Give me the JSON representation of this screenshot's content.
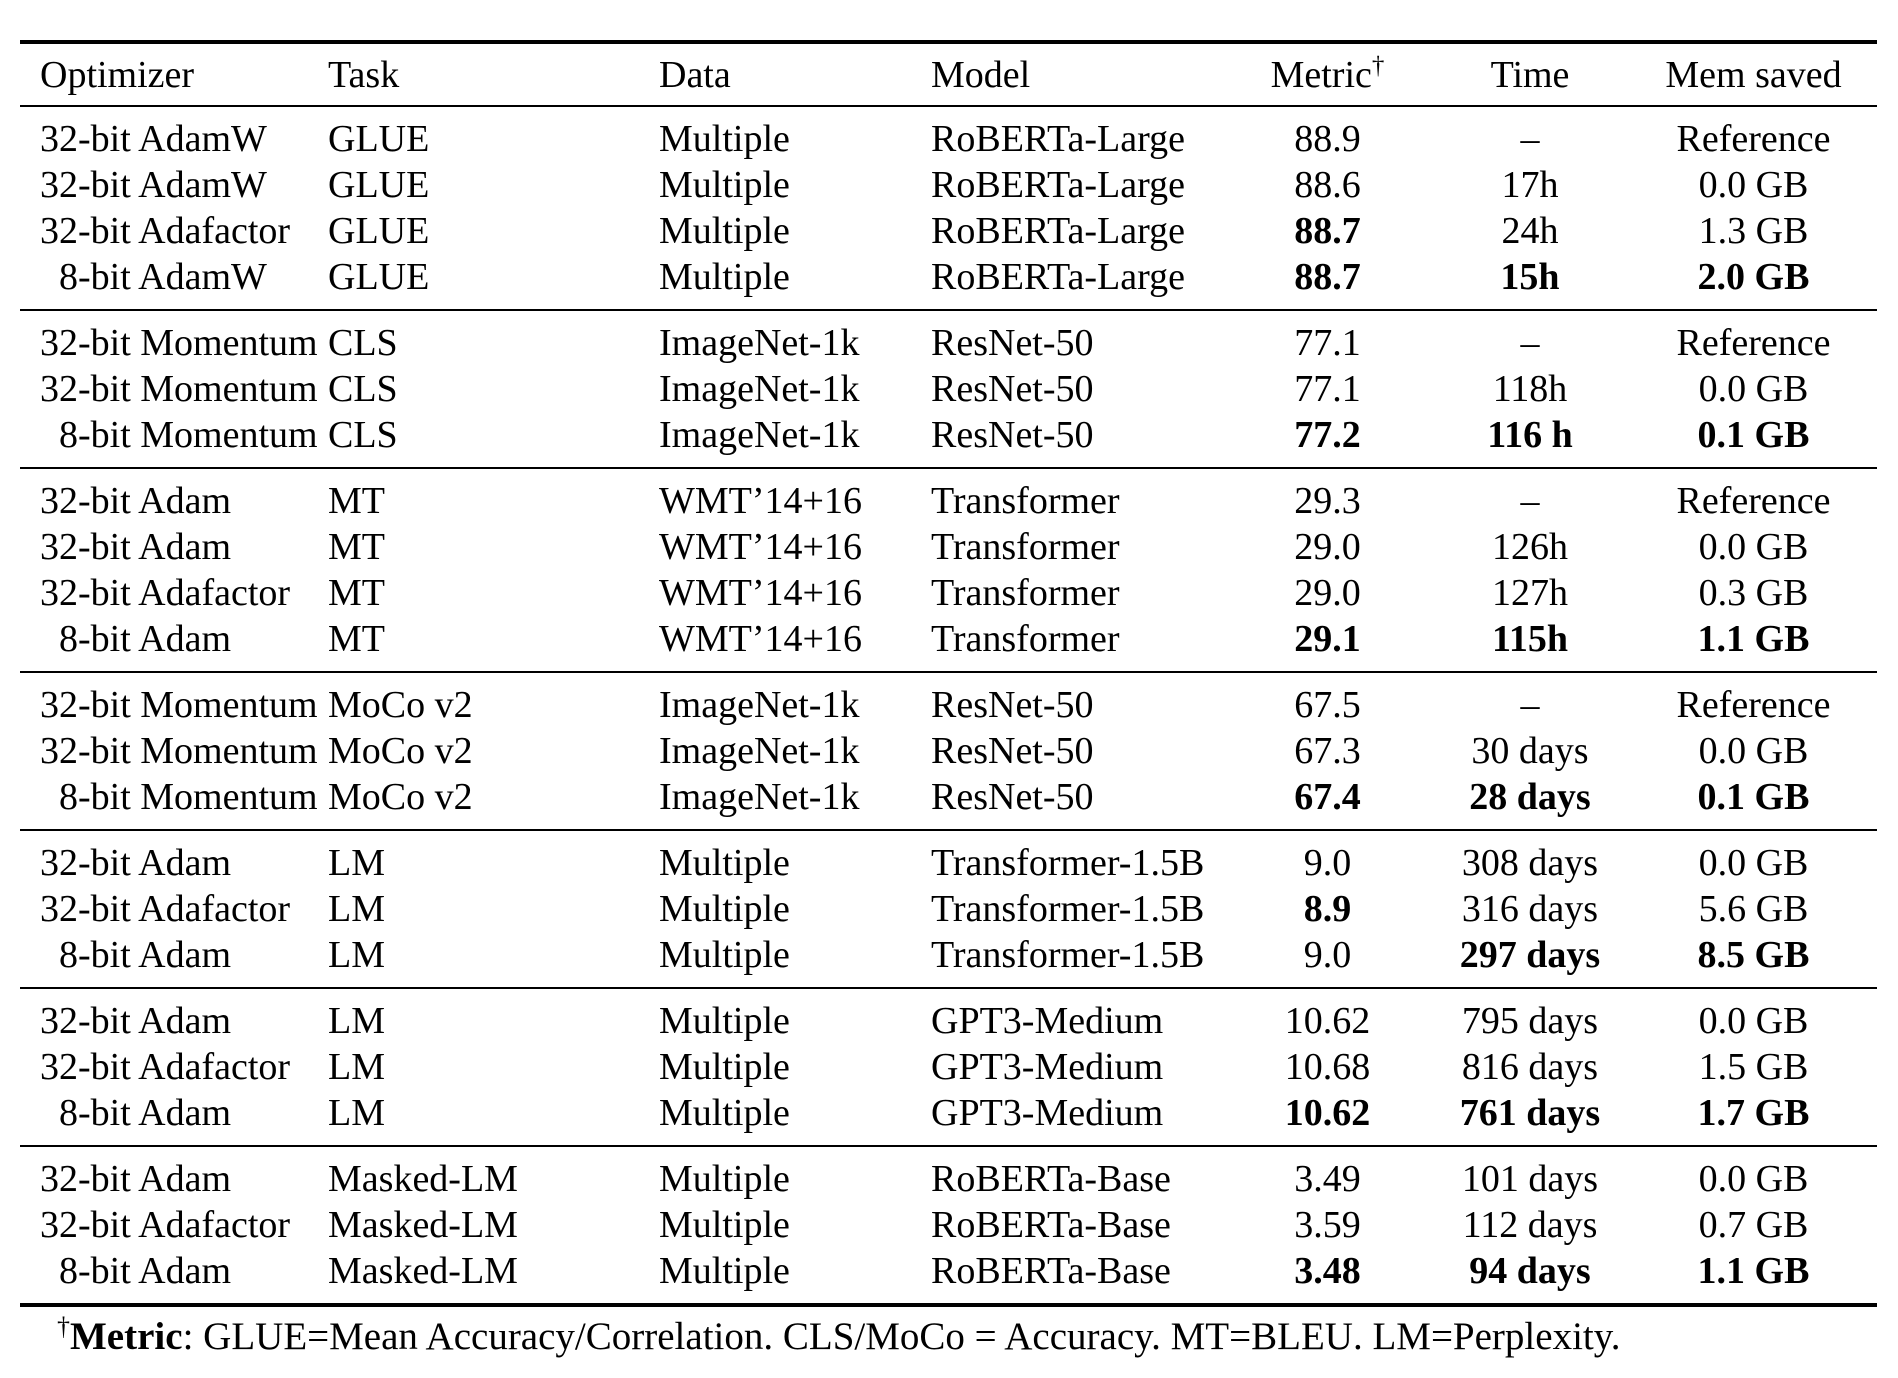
{
  "table": {
    "columns": [
      {
        "label": "Optimizer"
      },
      {
        "label": "Task"
      },
      {
        "label": "Data"
      },
      {
        "label": "Model"
      },
      {
        "label": "Metric",
        "sup": "†"
      },
      {
        "label": "Time"
      },
      {
        "label": "Mem saved"
      }
    ],
    "sections": [
      {
        "rows": [
          {
            "c": [
              "32-bit AdamW",
              "GLUE",
              "Multiple",
              "RoBERTa-Large",
              "88.9",
              "–",
              "Reference"
            ]
          },
          {
            "c": [
              "32-bit AdamW",
              "GLUE",
              "Multiple",
              "RoBERTa-Large",
              "88.6",
              "17h",
              "0.0 GB"
            ]
          },
          {
            "c": [
              "32-bit Adafactor",
              "GLUE",
              "Multiple",
              "RoBERTa-Large",
              "88.7",
              "24h",
              "1.3 GB"
            ]
          },
          {
            "c": [
              " 8-bit AdamW",
              "GLUE",
              "Multiple",
              "RoBERTa-Large",
              "88.7",
              "15h",
              "2.0 GB"
            ]
          }
        ]
      },
      {
        "rows": [
          {
            "c": [
              "32-bit Momentum",
              "CLS",
              "ImageNet-1k",
              "ResNet-50",
              "77.1",
              "–",
              "Reference"
            ]
          },
          {
            "c": [
              "32-bit Momentum",
              "CLS",
              "ImageNet-1k",
              "ResNet-50",
              "77.1",
              "118h",
              "0.0 GB"
            ]
          },
          {
            "c": [
              " 8-bit Momentum",
              "CLS",
              "ImageNet-1k",
              "ResNet-50",
              "77.2",
              "116 h",
              "0.1 GB"
            ]
          }
        ]
      },
      {
        "rows": [
          {
            "c": [
              "32-bit Adam",
              "MT",
              "WMT’14+16",
              "Transformer",
              "29.3",
              "–",
              "Reference"
            ]
          },
          {
            "c": [
              "32-bit Adam",
              "MT",
              "WMT’14+16",
              "Transformer",
              "29.0",
              "126h",
              "0.0 GB"
            ]
          },
          {
            "c": [
              "32-bit Adafactor",
              "MT",
              "WMT’14+16",
              "Transformer",
              "29.0",
              "127h",
              "0.3 GB"
            ]
          },
          {
            "c": [
              " 8-bit Adam",
              "MT",
              "WMT’14+16",
              "Transformer",
              "29.1",
              "115h",
              "1.1 GB"
            ]
          }
        ]
      },
      {
        "rows": [
          {
            "c": [
              "32-bit Momentum",
              "MoCo v2",
              "ImageNet-1k",
              "ResNet-50",
              "67.5",
              "–",
              "Reference"
            ]
          },
          {
            "c": [
              "32-bit Momentum",
              "MoCo v2",
              "ImageNet-1k",
              "ResNet-50",
              "67.3",
              "30 days",
              "0.0 GB"
            ]
          },
          {
            "c": [
              " 8-bit Momentum",
              "MoCo v2",
              "ImageNet-1k",
              "ResNet-50",
              "67.4",
              "28 days",
              "0.1 GB"
            ]
          }
        ]
      },
      {
        "rows": [
          {
            "c": [
              "32-bit Adam",
              "LM",
              "Multiple",
              "Transformer-1.5B",
              "9.0",
              "308 days",
              "0.0 GB"
            ]
          },
          {
            "c": [
              "32-bit Adafactor",
              "LM",
              "Multiple",
              "Transformer-1.5B",
              "8.9",
              "316 days",
              "5.6 GB"
            ]
          },
          {
            "c": [
              " 8-bit Adam",
              "LM",
              "Multiple",
              "Transformer-1.5B",
              "9.0",
              "297 days",
              "8.5 GB"
            ]
          }
        ]
      },
      {
        "rows": [
          {
            "c": [
              "32-bit Adam",
              "LM",
              "Multiple",
              "GPT3-Medium",
              "10.62",
              "795 days",
              "0.0 GB"
            ]
          },
          {
            "c": [
              "32-bit Adafactor",
              "LM",
              "Multiple",
              "GPT3-Medium",
              "10.68",
              "816 days",
              "1.5 GB"
            ]
          },
          {
            "c": [
              " 8-bit Adam",
              "LM",
              "Multiple",
              "GPT3-Medium",
              "10.62",
              "761 days",
              "1.7 GB"
            ]
          }
        ]
      },
      {
        "rows": [
          {
            "c": [
              "32-bit Adam",
              "Masked-LM",
              "Multiple",
              "RoBERTa-Base",
              "3.49",
              "101 days",
              "0.0 GB"
            ]
          },
          {
            "c": [
              "32-bit Adafactor",
              "Masked-LM",
              "Multiple",
              "RoBERTa-Base",
              "3.59",
              "112 days",
              "0.7 GB"
            ]
          },
          {
            "c": [
              " 8-bit Adam",
              "Masked-LM",
              "Multiple",
              "RoBERTa-Base",
              "3.48",
              "94 days",
              "1.1 GB"
            ]
          }
        ]
      }
    ]
  },
  "footnote": {
    "dagger": "†",
    "label": "Metric",
    "text": ": GLUE=Mean Accuracy/Correlation. CLS/MoCo = Accuracy. MT=BLEU. LM=Perplexity."
  }
}
